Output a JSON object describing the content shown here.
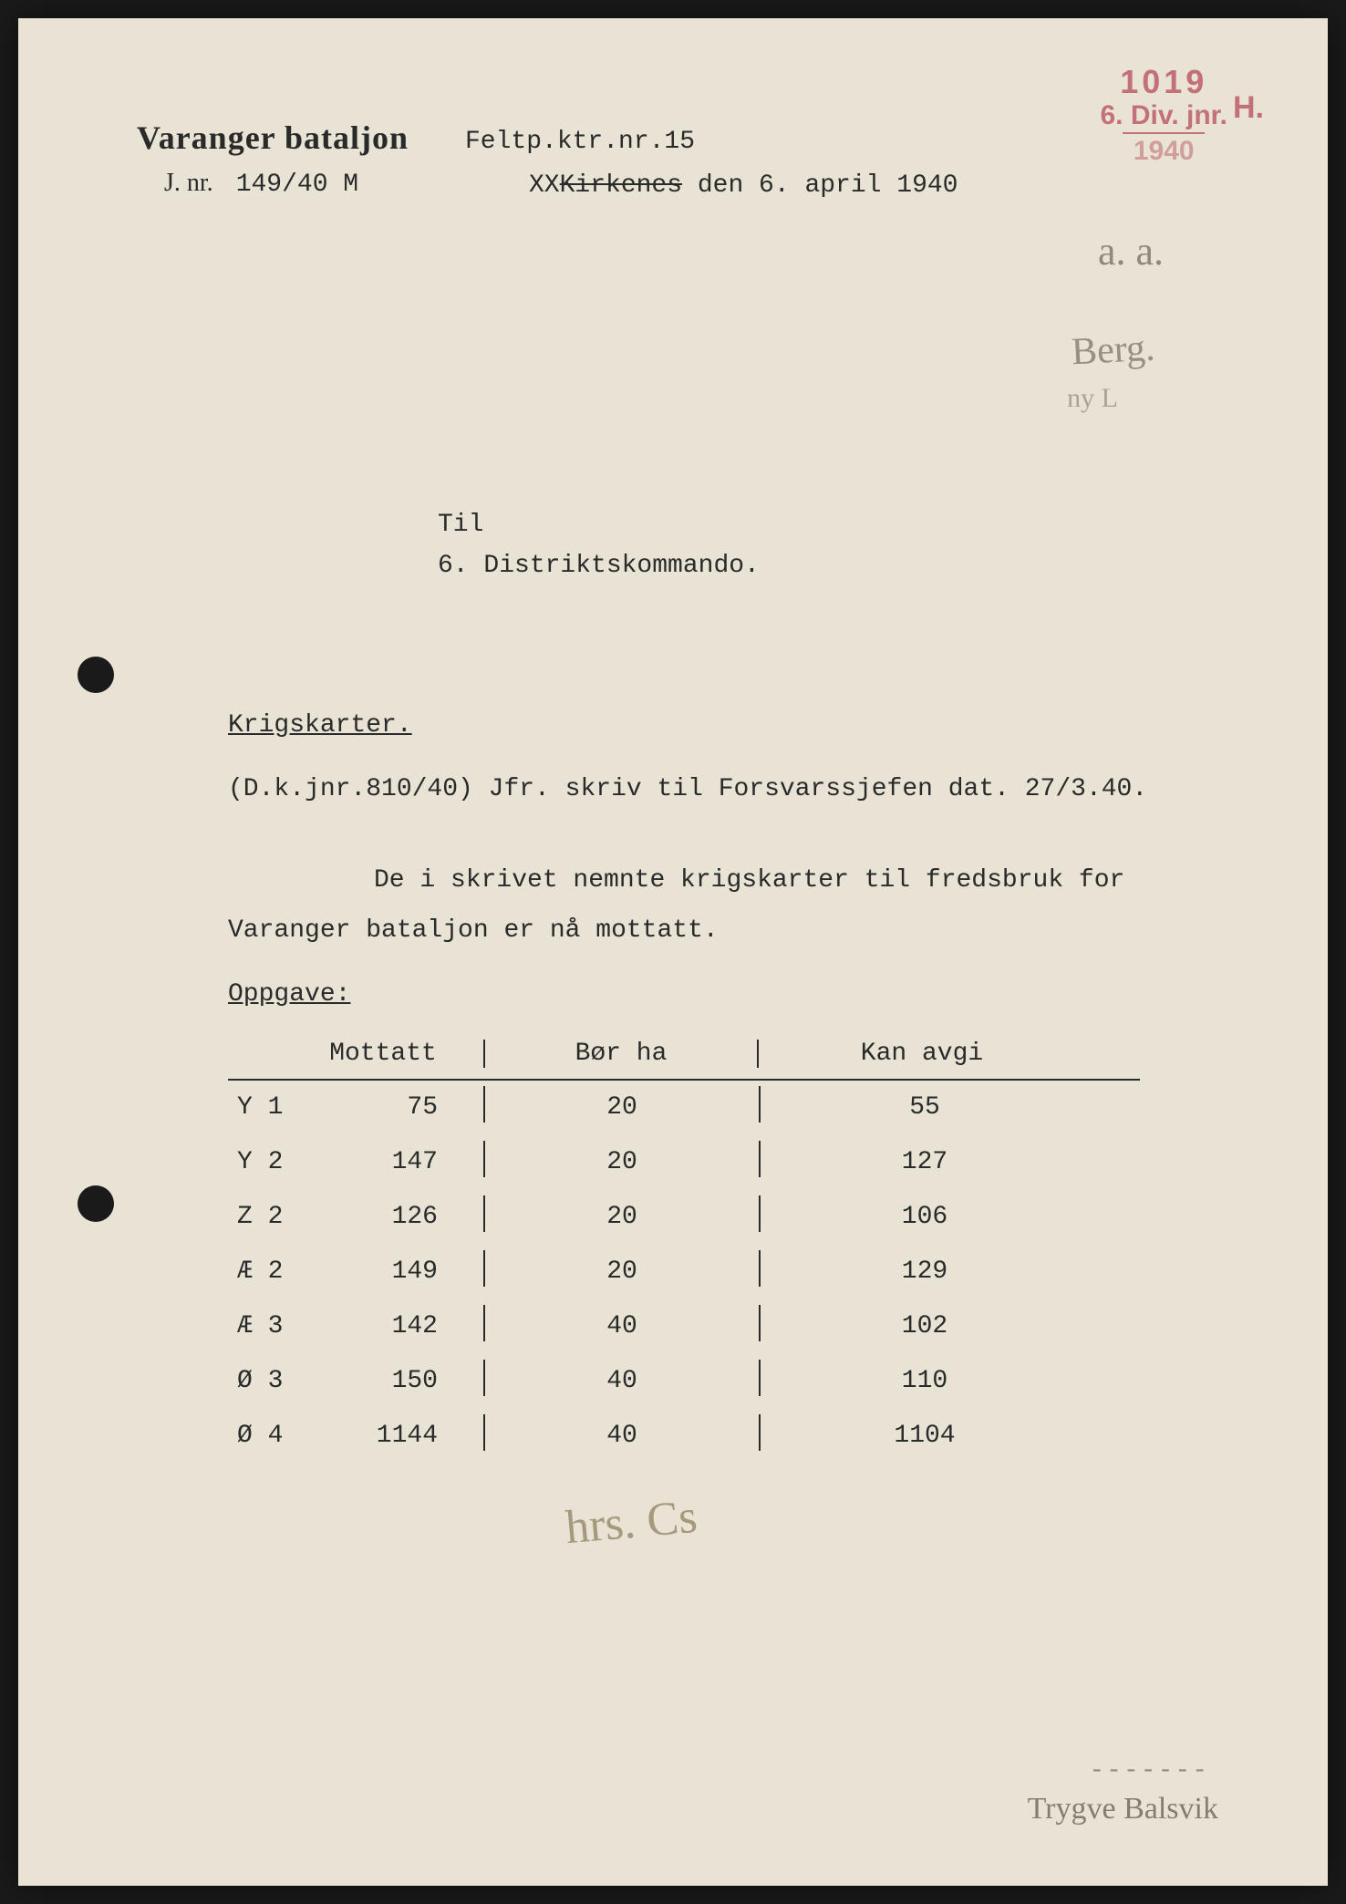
{
  "stamp": {
    "number": "1019",
    "div": "6. Div. jnr.",
    "year": "1940",
    "suffix": "H."
  },
  "header": {
    "org": "Varanger bataljon",
    "jnr_label": "J. nr.",
    "jnr_value": "149/40 M",
    "feltp": "Feltp.ktr.nr.15",
    "place_prefix": "XX",
    "place_strike": "Kirkenes",
    "date_word": " den ",
    "date": "6. april 1940"
  },
  "annotations": {
    "a1": "a. a.",
    "a2": "Berg.",
    "a3": "ny L"
  },
  "addressee": {
    "til": "Til",
    "to": "6. Distriktskommando."
  },
  "subject": "Krigskarter.",
  "reference": "(D.k.jnr.810/40) Jfr. skriv til Forsvarssjefen dat. 27/3.40.",
  "body": {
    "line1": "De i skrivet nemnte krigskarter til fredsbruk for",
    "line2": "Varanger bataljon er nå mottatt."
  },
  "oppgave_label": "Oppgave:",
  "table": {
    "headers": {
      "c1": "Mottatt",
      "c2": "Bør ha",
      "c3": "Kan avgi"
    },
    "rows": [
      {
        "id": "Y 1",
        "mottatt": "75",
        "bor": "20",
        "avgi": "55"
      },
      {
        "id": "Y 2",
        "mottatt": "147",
        "bor": "20",
        "avgi": "127"
      },
      {
        "id": "Z 2",
        "mottatt": "126",
        "bor": "20",
        "avgi": "106"
      },
      {
        "id": "Æ 2",
        "mottatt": "149",
        "bor": "20",
        "avgi": "129"
      },
      {
        "id": "Æ 3",
        "mottatt": "142",
        "bor": "40",
        "avgi": "102"
      },
      {
        "id": "Ø 3",
        "mottatt": "150",
        "bor": "40",
        "avgi": "110"
      },
      {
        "id": "Ø 4",
        "mottatt": "1144",
        "bor": "40",
        "avgi": "1104"
      }
    ]
  },
  "signature": "hrs. Cs",
  "bottom_dash": "-------",
  "bottom_sig": "Trygve Balsvik"
}
